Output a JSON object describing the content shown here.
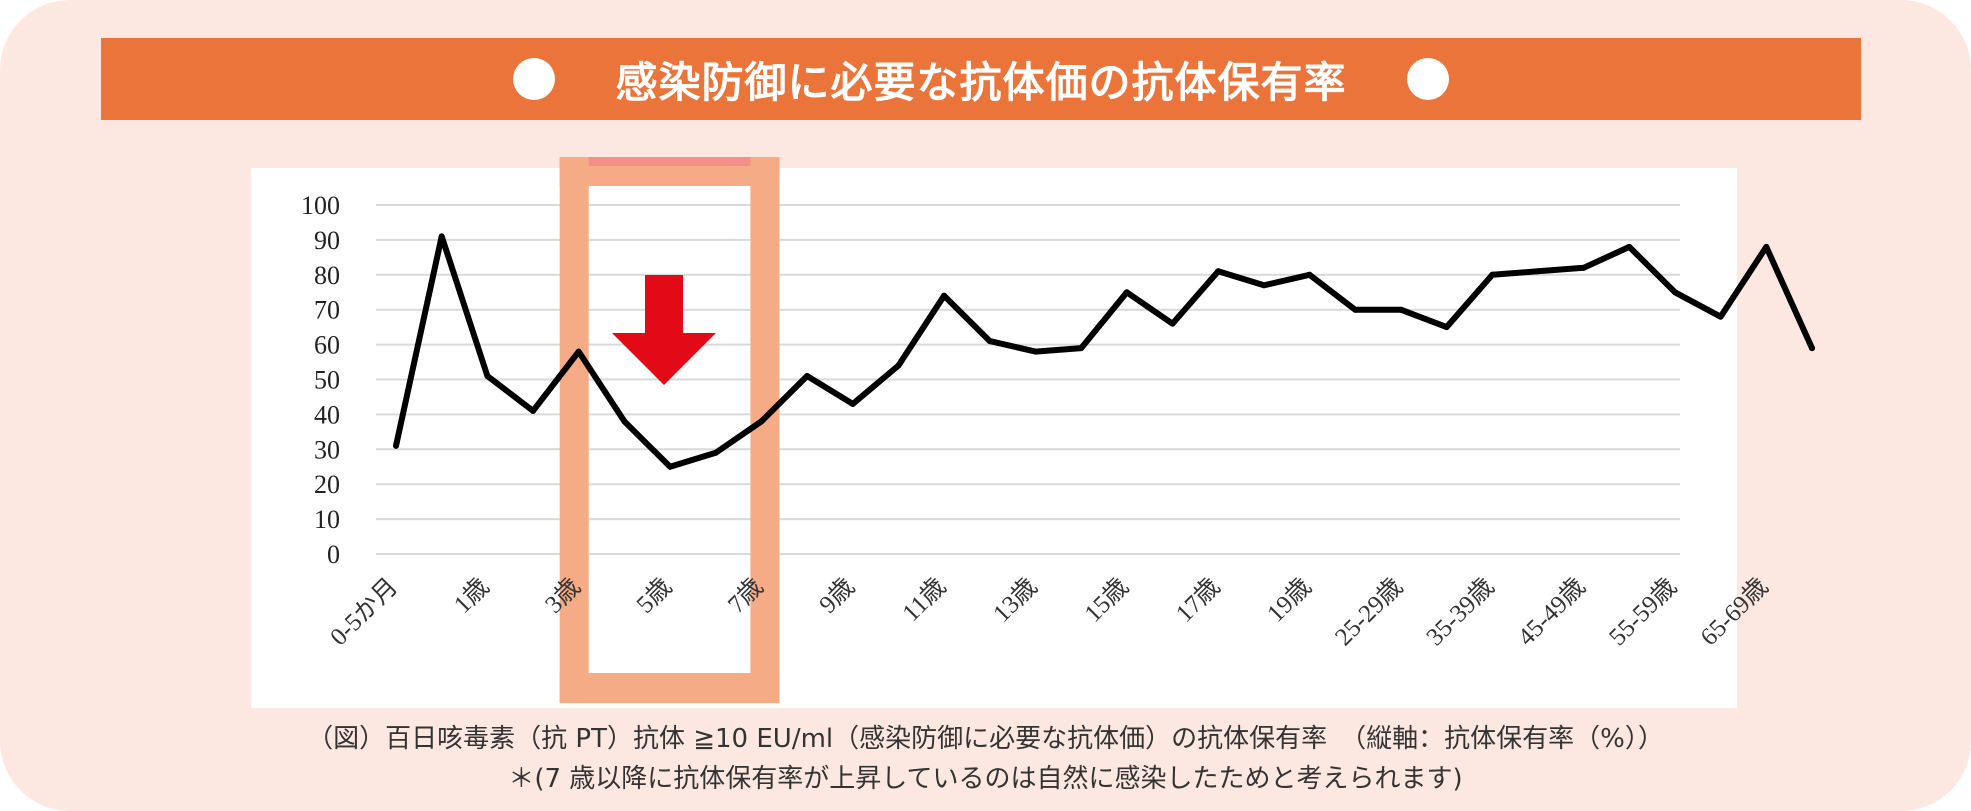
{
  "banner": {
    "title": "感染防御に必要な抗体価の抗体保有率",
    "color": "#ea7439"
  },
  "caption": {
    "line1": "（図）百日咳毒素（抗 PT）抗体 ≧10 EU/ml（感染防御に必要な抗体価）の抗体保有率　（縦軸：抗体保有率（%））",
    "line2": "＊(7 歳以降に抗体保有率が上昇しているのは自然に感染したためと考えられます)"
  },
  "colors": {
    "background": "#fce8e1",
    "highlight": "#f5ab86",
    "highlight_top": "#f28f8a",
    "arrow": "#e20a16",
    "line": "#000000"
  },
  "icons": {
    "highlight_arrow": "down-arrow-icon"
  },
  "chart_data": {
    "type": "line",
    "x": [
      "0-5か月",
      "",
      "1歳",
      "",
      "3歳",
      "",
      "5歳",
      "",
      "7歳",
      "",
      "9歳",
      "",
      "11歳",
      "",
      "13歳",
      "",
      "15歳",
      "",
      "17歳",
      "",
      "19歳",
      "",
      "25-29歳",
      "",
      "35-39歳",
      "",
      "45-49歳",
      "",
      "55-59歳",
      "",
      "65-69歳",
      ""
    ],
    "series": [
      {
        "values": [
          31,
          91,
          51,
          41,
          58,
          38,
          25,
          29,
          38,
          51,
          43,
          54,
          74,
          61,
          58,
          59,
          75,
          66,
          81,
          77,
          80,
          70,
          70,
          65,
          80,
          81,
          82,
          88,
          75,
          68,
          88,
          59
        ]
      }
    ],
    "yticks": [
      0,
      10,
      20,
      30,
      40,
      50,
      60,
      70,
      80,
      90,
      100
    ],
    "ylim": [
      0,
      100
    ],
    "grid": true,
    "highlight": {
      "from": "3歳",
      "to": "7歳"
    }
  }
}
